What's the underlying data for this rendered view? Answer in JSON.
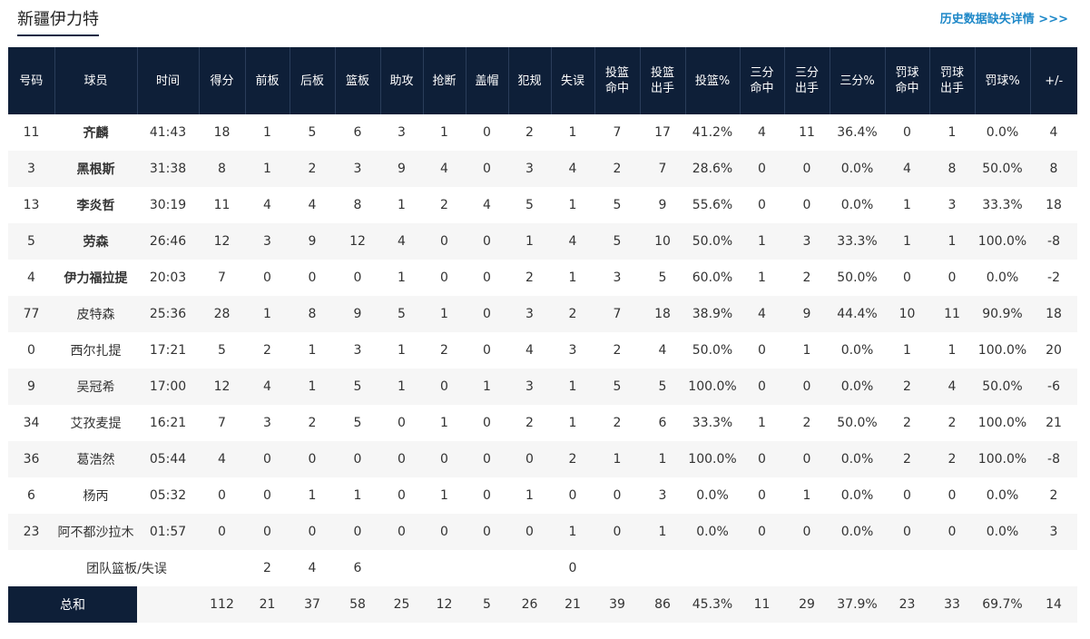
{
  "header": {
    "team_name": "新疆伊力特",
    "history_link": "历史数据缺失详情 >>>"
  },
  "columns": [
    "号码",
    "球员",
    "时间",
    "得分",
    "前板",
    "后板",
    "篮板",
    "助攻",
    "抢断",
    "盖帽",
    "犯规",
    "失误",
    "投篮 命中",
    "投篮 出手",
    "投篮%",
    "三分 命中",
    "三分 出手",
    "三分%",
    "罚球 命中",
    "罚球 出手",
    "罚球%",
    "+/-"
  ],
  "players": [
    {
      "no": "11",
      "name": "齐麟",
      "starter": true,
      "min": "41:43",
      "pts": "18",
      "oreb": "1",
      "dreb": "5",
      "reb": "6",
      "ast": "3",
      "stl": "1",
      "blk": "0",
      "pf": "2",
      "tov": "1",
      "fgm": "7",
      "fga": "17",
      "fgp": "41.2%",
      "tpm": "4",
      "tpa": "11",
      "tpp": "36.4%",
      "ftm": "0",
      "fta": "1",
      "ftp": "0.0%",
      "pm": "4"
    },
    {
      "no": "3",
      "name": "黑根斯",
      "starter": true,
      "min": "31:38",
      "pts": "8",
      "oreb": "1",
      "dreb": "2",
      "reb": "3",
      "ast": "9",
      "stl": "4",
      "blk": "0",
      "pf": "3",
      "tov": "4",
      "fgm": "2",
      "fga": "7",
      "fgp": "28.6%",
      "tpm": "0",
      "tpa": "0",
      "tpp": "0.0%",
      "ftm": "4",
      "fta": "8",
      "ftp": "50.0%",
      "pm": "8"
    },
    {
      "no": "13",
      "name": "李炎哲",
      "starter": true,
      "min": "30:19",
      "pts": "11",
      "oreb": "4",
      "dreb": "4",
      "reb": "8",
      "ast": "1",
      "stl": "2",
      "blk": "4",
      "pf": "5",
      "tov": "1",
      "fgm": "5",
      "fga": "9",
      "fgp": "55.6%",
      "tpm": "0",
      "tpa": "0",
      "tpp": "0.0%",
      "ftm": "1",
      "fta": "3",
      "ftp": "33.3%",
      "pm": "18"
    },
    {
      "no": "5",
      "name": "劳森",
      "starter": true,
      "min": "26:46",
      "pts": "12",
      "oreb": "3",
      "dreb": "9",
      "reb": "12",
      "ast": "4",
      "stl": "0",
      "blk": "0",
      "pf": "1",
      "tov": "4",
      "fgm": "5",
      "fga": "10",
      "fgp": "50.0%",
      "tpm": "1",
      "tpa": "3",
      "tpp": "33.3%",
      "ftm": "1",
      "fta": "1",
      "ftp": "100.0%",
      "pm": "-8"
    },
    {
      "no": "4",
      "name": "伊力福拉提",
      "starter": true,
      "min": "20:03",
      "pts": "7",
      "oreb": "0",
      "dreb": "0",
      "reb": "0",
      "ast": "1",
      "stl": "0",
      "blk": "0",
      "pf": "2",
      "tov": "1",
      "fgm": "3",
      "fga": "5",
      "fgp": "60.0%",
      "tpm": "1",
      "tpa": "2",
      "tpp": "50.0%",
      "ftm": "0",
      "fta": "0",
      "ftp": "0.0%",
      "pm": "-2"
    },
    {
      "no": "77",
      "name": "皮特森",
      "starter": false,
      "min": "25:36",
      "pts": "28",
      "oreb": "1",
      "dreb": "8",
      "reb": "9",
      "ast": "5",
      "stl": "1",
      "blk": "0",
      "pf": "3",
      "tov": "2",
      "fgm": "7",
      "fga": "18",
      "fgp": "38.9%",
      "tpm": "4",
      "tpa": "9",
      "tpp": "44.4%",
      "ftm": "10",
      "fta": "11",
      "ftp": "90.9%",
      "pm": "18"
    },
    {
      "no": "0",
      "name": "西尔扎提",
      "starter": false,
      "min": "17:21",
      "pts": "5",
      "oreb": "2",
      "dreb": "1",
      "reb": "3",
      "ast": "1",
      "stl": "2",
      "blk": "0",
      "pf": "4",
      "tov": "3",
      "fgm": "2",
      "fga": "4",
      "fgp": "50.0%",
      "tpm": "0",
      "tpa": "1",
      "tpp": "0.0%",
      "ftm": "1",
      "fta": "1",
      "ftp": "100.0%",
      "pm": "20"
    },
    {
      "no": "9",
      "name": "吴冠希",
      "starter": false,
      "min": "17:00",
      "pts": "12",
      "oreb": "4",
      "dreb": "1",
      "reb": "5",
      "ast": "1",
      "stl": "0",
      "blk": "1",
      "pf": "3",
      "tov": "1",
      "fgm": "5",
      "fga": "5",
      "fgp": "100.0%",
      "tpm": "0",
      "tpa": "0",
      "tpp": "0.0%",
      "ftm": "2",
      "fta": "4",
      "ftp": "50.0%",
      "pm": "-6"
    },
    {
      "no": "34",
      "name": "艾孜麦提",
      "starter": false,
      "min": "16:21",
      "pts": "7",
      "oreb": "3",
      "dreb": "2",
      "reb": "5",
      "ast": "0",
      "stl": "1",
      "blk": "0",
      "pf": "2",
      "tov": "1",
      "fgm": "2",
      "fga": "6",
      "fgp": "33.3%",
      "tpm": "1",
      "tpa": "2",
      "tpp": "50.0%",
      "ftm": "2",
      "fta": "2",
      "ftp": "100.0%",
      "pm": "21"
    },
    {
      "no": "36",
      "name": "葛浩然",
      "starter": false,
      "min": "05:44",
      "pts": "4",
      "oreb": "0",
      "dreb": "0",
      "reb": "0",
      "ast": "0",
      "stl": "0",
      "blk": "0",
      "pf": "0",
      "tov": "2",
      "fgm": "1",
      "fga": "1",
      "fgp": "100.0%",
      "tpm": "0",
      "tpa": "0",
      "tpp": "0.0%",
      "ftm": "2",
      "fta": "2",
      "ftp": "100.0%",
      "pm": "-8"
    },
    {
      "no": "6",
      "name": "杨丙",
      "starter": false,
      "min": "05:32",
      "pts": "0",
      "oreb": "0",
      "dreb": "1",
      "reb": "1",
      "ast": "0",
      "stl": "1",
      "blk": "0",
      "pf": "1",
      "tov": "0",
      "fgm": "0",
      "fga": "3",
      "fgp": "0.0%",
      "tpm": "0",
      "tpa": "1",
      "tpp": "0.0%",
      "ftm": "0",
      "fta": "0",
      "ftp": "0.0%",
      "pm": "2"
    },
    {
      "no": "23",
      "name": "阿不都沙拉木",
      "starter": false,
      "min": "01:57",
      "pts": "0",
      "oreb": "0",
      "dreb": "0",
      "reb": "0",
      "ast": "0",
      "stl": "0",
      "blk": "0",
      "pf": "0",
      "tov": "1",
      "fgm": "0",
      "fga": "1",
      "fgp": "0.0%",
      "tpm": "0",
      "tpa": "0",
      "tpp": "0.0%",
      "ftm": "0",
      "fta": "0",
      "ftp": "0.0%",
      "pm": "3"
    }
  ],
  "team_row": {
    "label": "团队篮板/失误",
    "oreb": "2",
    "dreb": "4",
    "reb": "6",
    "tov": "0"
  },
  "totals": {
    "label": "总和",
    "pts": "112",
    "oreb": "21",
    "dreb": "37",
    "reb": "58",
    "ast": "25",
    "stl": "12",
    "blk": "5",
    "pf": "26",
    "tov": "21",
    "fgm": "39",
    "fga": "86",
    "fgp": "45.3%",
    "tpm": "11",
    "tpa": "29",
    "tpp": "37.9%",
    "ftm": "23",
    "fta": "33",
    "ftp": "69.7%",
    "pm": "14"
  },
  "colors": {
    "header_bg": "#0e1f38",
    "link": "#1e88c8",
    "stripe": "#f6f6f6"
  }
}
